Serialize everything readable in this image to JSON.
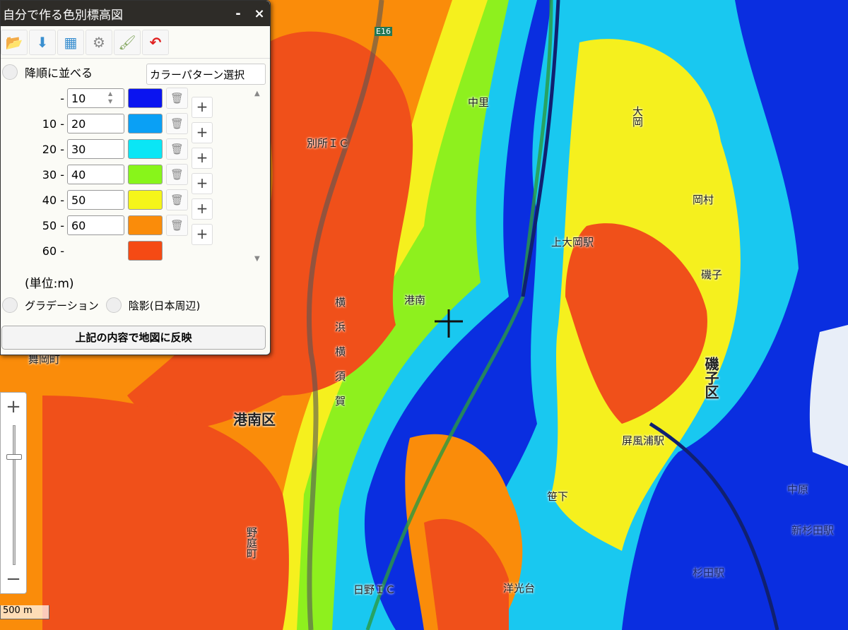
{
  "panel": {
    "title": "自分で作る色別標高図",
    "minimize": "-",
    "close": "×",
    "toolbar": [
      {
        "icon": "load-icon"
      },
      {
        "icon": "save-icon"
      },
      {
        "icon": "layer-icon"
      },
      {
        "icon": "color-gear-icon"
      },
      {
        "icon": "paint-brush-icon"
      },
      {
        "icon": "undo-icon"
      }
    ],
    "descending_label": "降順に並べる",
    "pattern_button": "カラーパターン選択",
    "levels": [
      {
        "from": "-",
        "value": "10",
        "color": "#0a14f0"
      },
      {
        "from": "10 -",
        "value": "20",
        "color": "#0aa0f5"
      },
      {
        "from": "20 -",
        "value": "30",
        "color": "#0ae6f5"
      },
      {
        "from": "30 -",
        "value": "40",
        "color": "#88f51a"
      },
      {
        "from": "40 -",
        "value": "50",
        "color": "#f5f51a"
      },
      {
        "from": "50 -",
        "value": "60",
        "color": "#fa8c0a"
      },
      {
        "from": "60 -",
        "value": null,
        "color": "#f54a14"
      }
    ],
    "add_label": "+",
    "unit": "(単位:m)",
    "gradation_label": "グラデーション",
    "shading_label": "陰影(日本周辺)",
    "apply_button": "上記の内容で地図に反映"
  },
  "zoom": {
    "in": "+",
    "out": "−"
  },
  "scale": "500 m",
  "map_labels": {
    "e16": "E16",
    "nakazato": "中里",
    "ooka": "大岡",
    "bessho": "別所ＩＣ",
    "okamura": "岡村",
    "kamiooka": "上大岡駅",
    "konan": "港南",
    "isogo": "磯子",
    "yokohama_yokosuka": "横浜横須賀",
    "konanku": "港南区",
    "isogoku": "磯子区",
    "byobugaura": "屏風浦駅",
    "sasage": "笹下",
    "nobamachi": "野庭町",
    "hino": "日野ＩＣ",
    "yokodai": "洋光台",
    "sugita": "杉田駅",
    "shinsugita": "新杉田駅",
    "nakahara": "中原",
    "maioka": "舞岡町"
  }
}
